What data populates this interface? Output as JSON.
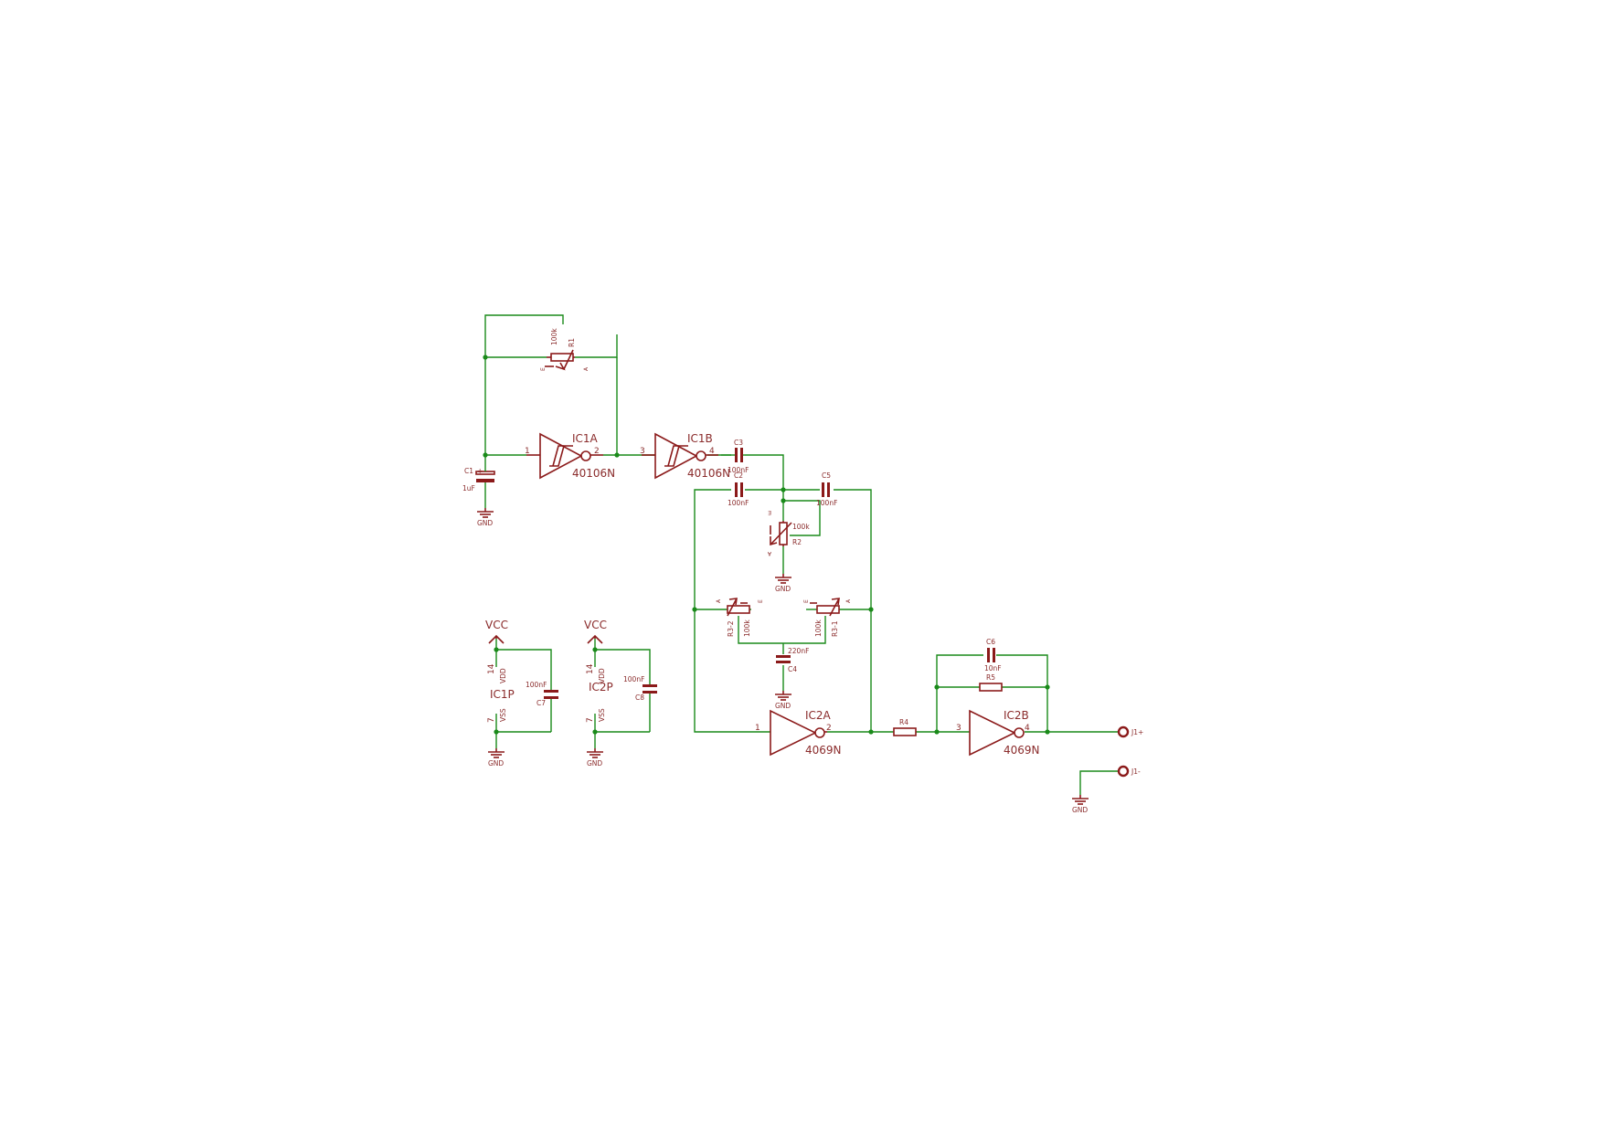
{
  "schematic": {
    "ic": {
      "ic1a": {
        "name": "IC1A",
        "value": "40106N",
        "pin_in": "1",
        "pin_out": "2"
      },
      "ic1b": {
        "name": "IC1B",
        "value": "40106N",
        "pin_in": "3",
        "pin_out": "4"
      },
      "ic2a": {
        "name": "IC2A",
        "value": "4069N",
        "pin_in": "1",
        "pin_out": "2"
      },
      "ic2b": {
        "name": "IC2B",
        "value": "4069N",
        "pin_in": "3",
        "pin_out": "4"
      },
      "ic1p": {
        "name": "IC1P",
        "vdd": "VDD",
        "vss": "VSS",
        "pin_vdd": "14",
        "pin_vss": "7"
      },
      "ic2p": {
        "name": "IC2P",
        "vdd": "VDD",
        "vss": "VSS",
        "pin_vdd": "14",
        "pin_vss": "7"
      }
    },
    "capacitors": {
      "c1": {
        "name": "C1",
        "value": "1uF",
        "polarity": "+"
      },
      "c2": {
        "name": "C2",
        "value": "100nF"
      },
      "c3": {
        "name": "C3",
        "value": "100nF"
      },
      "c4": {
        "name": "C4",
        "value": "220nF"
      },
      "c5": {
        "name": "C5",
        "value": "100nF"
      },
      "c6": {
        "name": "C6",
        "value": "10nF"
      },
      "c7": {
        "name": "C7",
        "value": "100nF"
      },
      "c8": {
        "name": "C8",
        "value": "100nF"
      }
    },
    "resistors": {
      "r1": {
        "name": "R1",
        "value": "100k",
        "pin_e": "E",
        "pin_a": "A"
      },
      "r2": {
        "name": "R2",
        "value": "100k",
        "pin_e": "E",
        "pin_a": "A"
      },
      "r3_1": {
        "name": "R3-1",
        "value": "100k",
        "pin_e": "E",
        "pin_a": "A"
      },
      "r3_2": {
        "name": "R3-2",
        "value": "100k",
        "pin_e": "E",
        "pin_a": "A"
      },
      "r4": {
        "name": "R4"
      },
      "r5": {
        "name": "R5"
      }
    },
    "supply": {
      "vcc": "VCC",
      "gnd": "GND"
    },
    "connectors": {
      "j1_plus": "J1+",
      "j1_minus": "J1-"
    }
  },
  "colors": {
    "wire": "#1a8a1a",
    "component": "#8b1a1a",
    "junction": "#1a8a1a",
    "background": "#ffffff"
  }
}
